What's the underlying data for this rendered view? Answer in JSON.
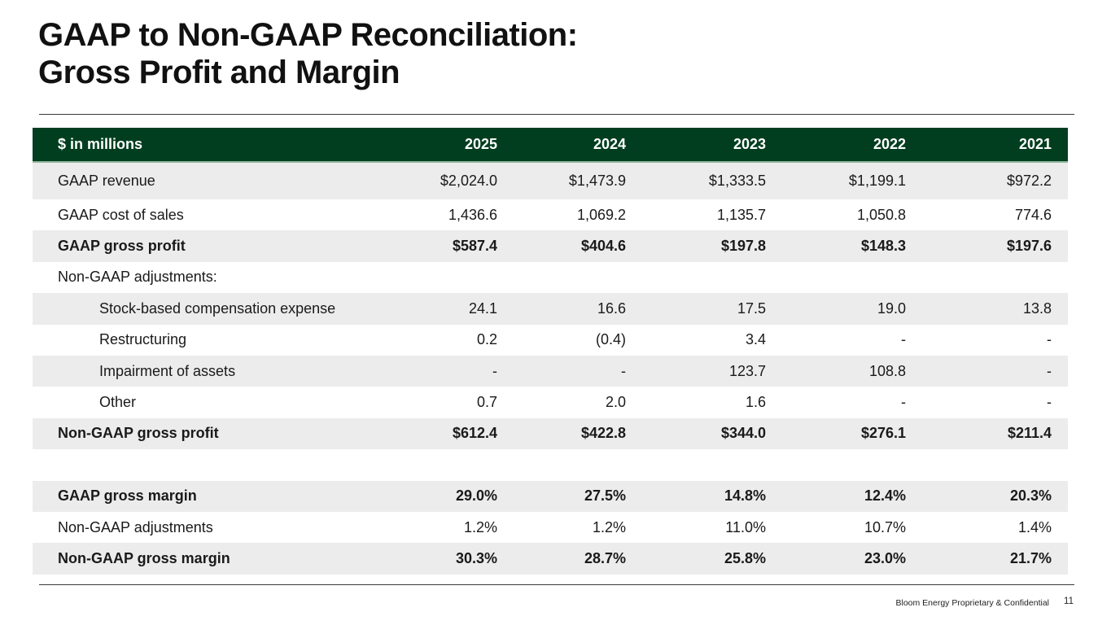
{
  "title": {
    "line1": "GAAP to Non-GAAP Reconciliation:",
    "line2": "Gross Profit and Margin"
  },
  "table": {
    "header": {
      "label": "$ in millions",
      "years": [
        "2025",
        "2024",
        "2023",
        "2022",
        "2021"
      ]
    },
    "rows": [
      {
        "label": "GAAP revenue",
        "values": [
          "$2,024.0",
          "$1,473.9",
          "$1,333.5",
          "$1,199.1",
          "$972.2"
        ]
      },
      {
        "label": "GAAP cost of sales",
        "values": [
          "1,436.6",
          "1,069.2",
          "1,135.7",
          "1,050.8",
          "774.6"
        ]
      },
      {
        "label": "GAAP gross profit",
        "values": [
          "$587.4",
          "$404.6",
          "$197.8",
          "$148.3",
          "$197.6"
        ]
      },
      {
        "label": "Non-GAAP adjustments:",
        "values": [
          "",
          "",
          "",
          "",
          ""
        ]
      },
      {
        "label": "Stock-based compensation expense",
        "values": [
          "24.1",
          "16.6",
          "17.5",
          "19.0",
          "13.8"
        ]
      },
      {
        "label": "Restructuring",
        "values": [
          "0.2",
          "(0.4)",
          "3.4",
          "-",
          "-"
        ]
      },
      {
        "label": "Impairment of assets",
        "values": [
          "-",
          "-",
          "123.7",
          "108.8",
          "-"
        ]
      },
      {
        "label": "Other",
        "values": [
          "0.7",
          "2.0",
          "1.6",
          "-",
          "-"
        ]
      },
      {
        "label": "Non-GAAP gross profit",
        "values": [
          "$612.4",
          "$422.8",
          "$344.0",
          "$276.1",
          "$211.4"
        ]
      },
      {
        "label": "",
        "values": [
          "",
          "",
          "",
          "",
          ""
        ]
      },
      {
        "label": "GAAP gross margin",
        "values": [
          "29.0%",
          "27.5%",
          "14.8%",
          "12.4%",
          "20.3%"
        ]
      },
      {
        "label": "Non-GAAP adjustments",
        "values": [
          "1.2%",
          "1.2%",
          "11.0%",
          "10.7%",
          "1.4%"
        ]
      },
      {
        "label": "Non-GAAP gross margin",
        "values": [
          "30.3%",
          "28.7%",
          "25.8%",
          "23.0%",
          "21.7%"
        ]
      }
    ]
  },
  "footer": {
    "text": "Bloom Energy Proprietary & Confidential",
    "page_number": "11"
  },
  "colors": {
    "header_bg": "#003e1f",
    "row_shade": "#ececec"
  }
}
